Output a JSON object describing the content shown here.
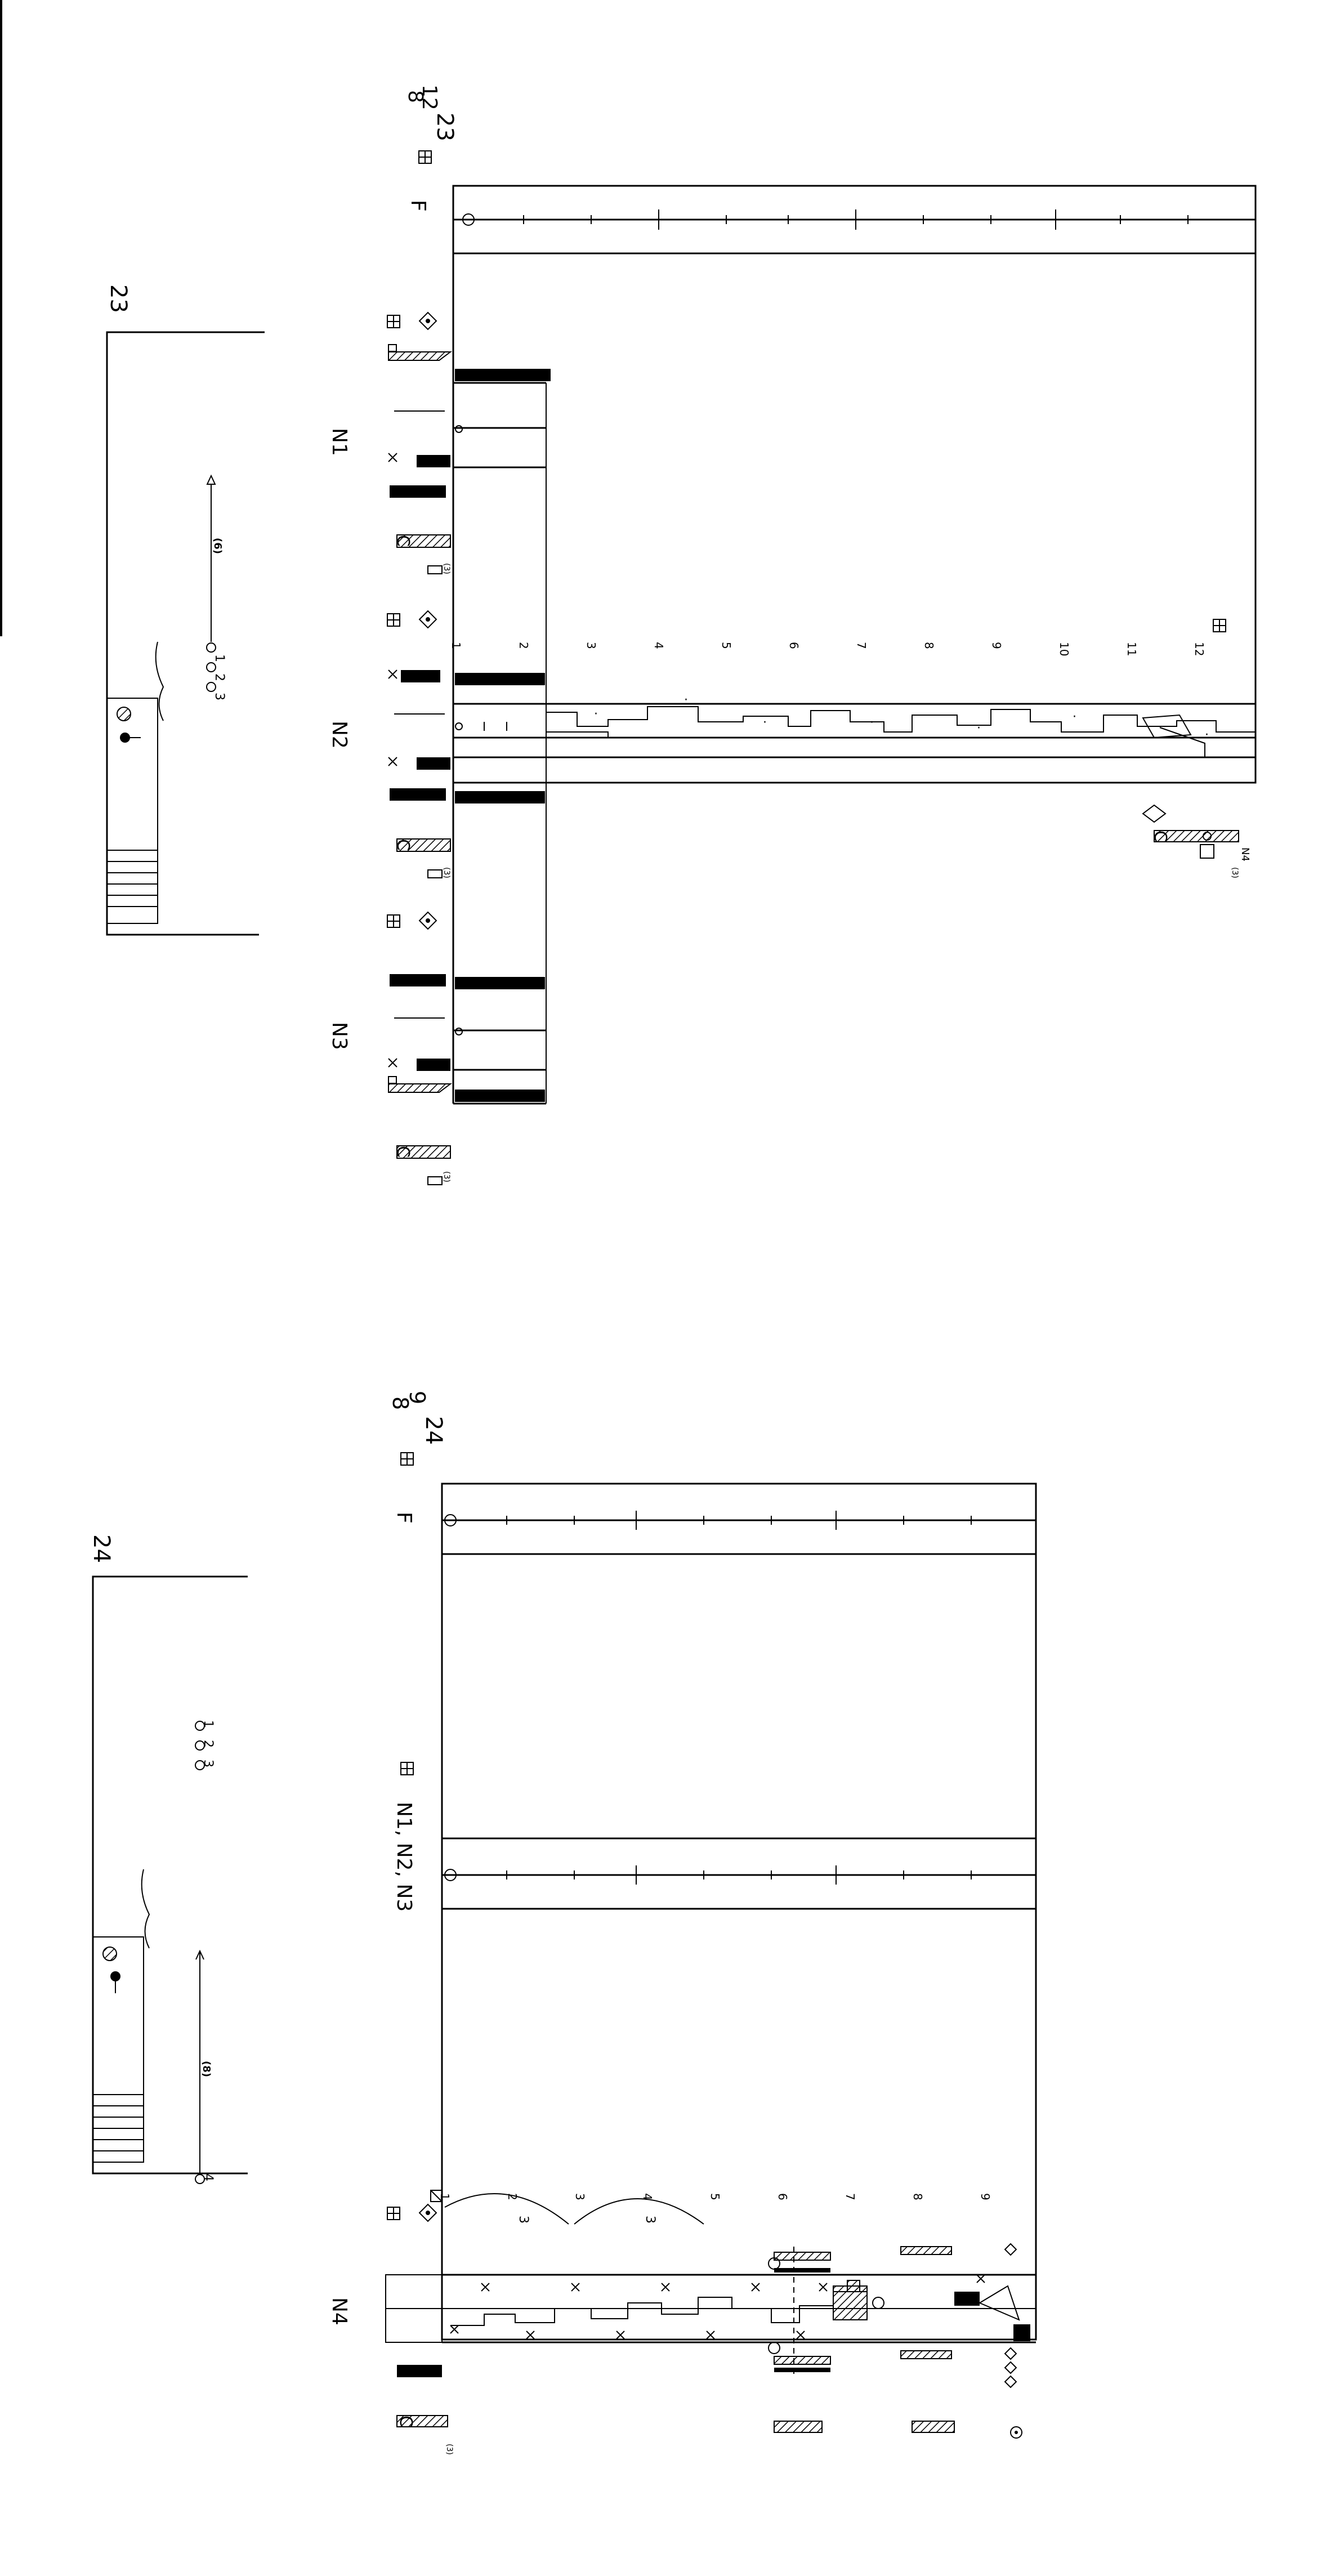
{
  "page": {
    "rotated": true,
    "background": "#ffffff",
    "ink": "#000000"
  },
  "system_1": {
    "measure_number": "23",
    "top_numbers": [
      "12",
      "8",
      "23"
    ],
    "staves": {
      "f": {
        "label": "F"
      },
      "n1": {
        "label": "N1"
      },
      "n2": {
        "label": "N2"
      },
      "n3": {
        "label": "N3"
      },
      "n4": {
        "label": "N4",
        "tag": "C",
        "sub": "(3)"
      }
    },
    "beat_numbers": [
      "1",
      "2",
      "3",
      "4",
      "5",
      "6",
      "7",
      "8",
      "9",
      "10",
      "11",
      "12"
    ],
    "tempo_mark": "(6)",
    "pitch_steps": [
      "1",
      "2",
      "3"
    ],
    "pedal_letter": "C",
    "pedal_sub": "(3)"
  },
  "system_2": {
    "measure_number": "24",
    "top_numbers": [
      "9",
      "8",
      "24"
    ],
    "staves": {
      "f": {
        "label": "F"
      },
      "n123": {
        "label": "N1, N2, N3"
      },
      "n4": {
        "label": "N4"
      }
    },
    "beat_numbers": [
      "1",
      "2",
      "3",
      "4",
      "5",
      "6",
      "7",
      "8",
      "9"
    ],
    "tuplets": [
      "3",
      "3"
    ],
    "tempo_mark": "(8)",
    "pitch_steps": [
      "1",
      "2",
      "3"
    ],
    "pitch_end": "4",
    "pedal_letter": "C",
    "pedal_sub": "(3)"
  },
  "icons": [
    "box-plus-icon",
    "diamond-dot-icon",
    "circle-icon",
    "cross-icon",
    "diamond-icon",
    "hatched-block-icon",
    "filled-block-icon"
  ]
}
